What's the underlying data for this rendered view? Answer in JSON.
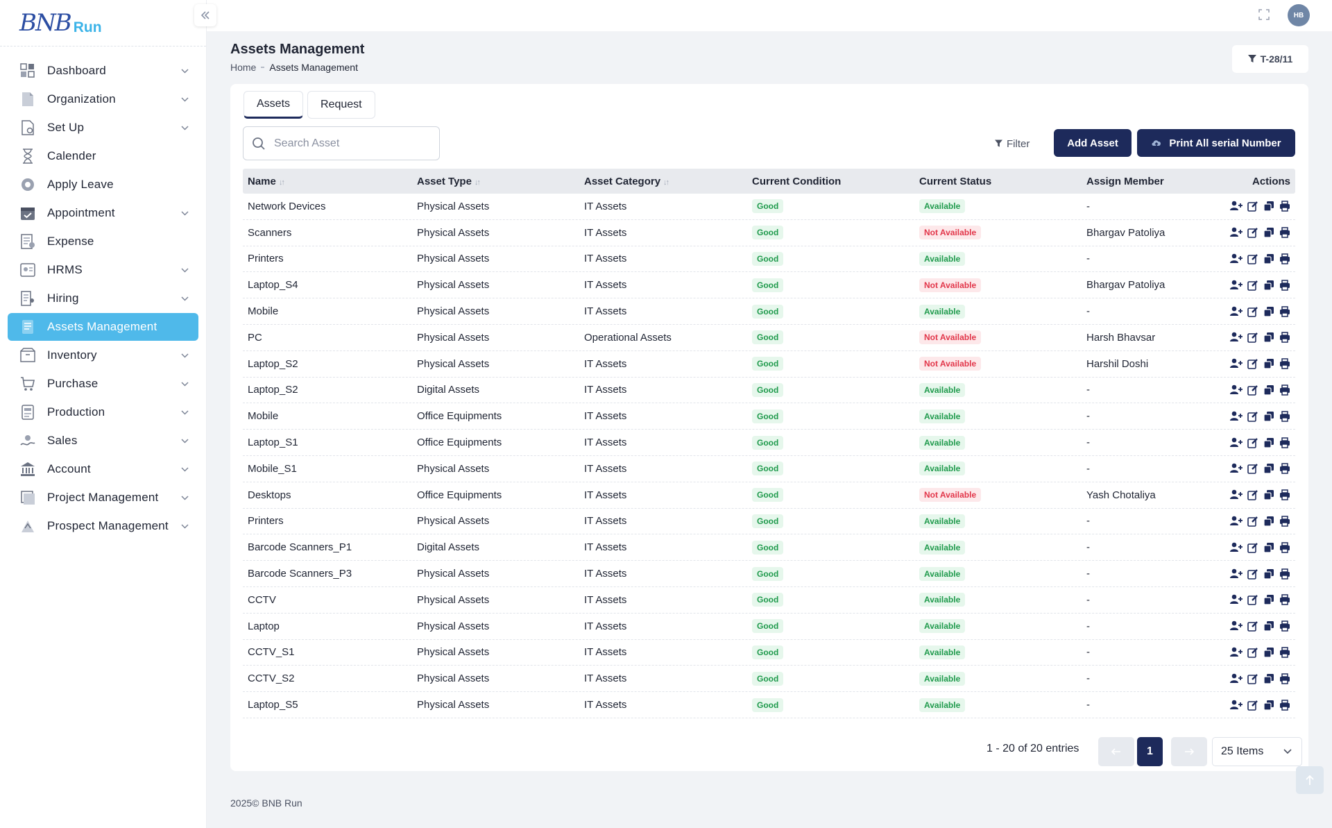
{
  "brand": {
    "logo_bn": "BNB",
    "logo_run": "Run"
  },
  "sidebar": {
    "items": [
      {
        "label": "Dashboard",
        "icon": "dashboard-icon",
        "has_children": true
      },
      {
        "label": "Organization",
        "icon": "document-icon",
        "has_children": true
      },
      {
        "label": "Set Up",
        "icon": "setup-icon",
        "has_children": true
      },
      {
        "label": "Calender",
        "icon": "hourglass-icon",
        "has_children": false
      },
      {
        "label": "Apply Leave",
        "icon": "leave-icon",
        "has_children": false
      },
      {
        "label": "Appointment",
        "icon": "calendar-check-icon",
        "has_children": true
      },
      {
        "label": "Expense",
        "icon": "receipt-icon",
        "has_children": false
      },
      {
        "label": "HRMS",
        "icon": "hrms-icon",
        "has_children": true
      },
      {
        "label": "Hiring",
        "icon": "hiring-icon",
        "has_children": true
      },
      {
        "label": "Assets Management",
        "icon": "assets-icon",
        "has_children": false,
        "active": true
      },
      {
        "label": "Inventory",
        "icon": "inventory-icon",
        "has_children": true
      },
      {
        "label": "Purchase",
        "icon": "cart-icon",
        "has_children": true
      },
      {
        "label": "Production",
        "icon": "production-icon",
        "has_children": true
      },
      {
        "label": "Sales",
        "icon": "sales-icon",
        "has_children": true
      },
      {
        "label": "Account",
        "icon": "bank-icon",
        "has_children": true
      },
      {
        "label": "Project Management",
        "icon": "project-icon",
        "has_children": true
      },
      {
        "label": "Prospect Management",
        "icon": "prospect-icon",
        "has_children": true
      }
    ]
  },
  "topbar": {
    "avatar_initials": "HB"
  },
  "header": {
    "title": "Assets Management",
    "breadcrumb_home": "Home",
    "breadcrumb_current": "Assets Management",
    "tag_label": "T-28/11"
  },
  "tabs": [
    {
      "label": "Assets",
      "active": true
    },
    {
      "label": "Request",
      "active": false
    }
  ],
  "search": {
    "placeholder": "Search Asset"
  },
  "toolbar": {
    "filter_label": "Filter",
    "add_label": "Add Asset",
    "print_label": "Print All serial Number"
  },
  "table": {
    "columns": [
      "Name",
      "Asset Type",
      "Asset Category",
      "Current Condition",
      "Current Status",
      "Assign Member",
      "Actions"
    ],
    "rows": [
      [
        "Network Devices",
        "Physical Assets",
        "IT Assets",
        "Good",
        "Available",
        "-"
      ],
      [
        "Scanners",
        "Physical Assets",
        "IT Assets",
        "Good",
        "Not Available",
        "Bhargav Patoliya"
      ],
      [
        "Printers",
        "Physical Assets",
        "IT Assets",
        "Good",
        "Available",
        "-"
      ],
      [
        "Laptop_S4",
        "Physical Assets",
        "IT Assets",
        "Good",
        "Not Available",
        "Bhargav Patoliya"
      ],
      [
        "Mobile",
        "Physical Assets",
        "IT Assets",
        "Good",
        "Available",
        "-"
      ],
      [
        "PC",
        "Physical Assets",
        "Operational Assets",
        "Good",
        "Not Available",
        "Harsh Bhavsar"
      ],
      [
        "Laptop_S2",
        "Physical Assets",
        "IT Assets",
        "Good",
        "Not Available",
        "Harshil Doshi"
      ],
      [
        "Laptop_S2",
        "Digital Assets",
        "IT Assets",
        "Good",
        "Available",
        "-"
      ],
      [
        "Mobile",
        "Office Equipments",
        "IT Assets",
        "Good",
        "Available",
        "-"
      ],
      [
        "Laptop_S1",
        "Office Equipments",
        "IT Assets",
        "Good",
        "Available",
        "-"
      ],
      [
        "Mobile_S1",
        "Physical Assets",
        "IT Assets",
        "Good",
        "Available",
        "-"
      ],
      [
        "Desktops",
        "Office Equipments",
        "IT Assets",
        "Good",
        "Not Available",
        "Yash Chotaliya"
      ],
      [
        "Printers",
        "Physical Assets",
        "IT Assets",
        "Good",
        "Available",
        "-"
      ],
      [
        "Barcode Scanners_P1",
        "Digital Assets",
        "IT Assets",
        "Good",
        "Available",
        "-"
      ],
      [
        "Barcode Scanners_P3",
        "Physical Assets",
        "IT Assets",
        "Good",
        "Available",
        "-"
      ],
      [
        "CCTV",
        "Physical Assets",
        "IT Assets",
        "Good",
        "Available",
        "-"
      ],
      [
        "Laptop",
        "Physical Assets",
        "IT Assets",
        "Good",
        "Available",
        "-"
      ],
      [
        "CCTV_S1",
        "Physical Assets",
        "IT Assets",
        "Good",
        "Available",
        "-"
      ],
      [
        "CCTV_S2",
        "Physical Assets",
        "IT Assets",
        "Good",
        "Available",
        "-"
      ],
      [
        "Laptop_S5",
        "Physical Assets",
        "IT Assets",
        "Good",
        "Available",
        "-"
      ]
    ]
  },
  "pagination": {
    "summary": "1 - 20 of 20 entries",
    "current_page": "1",
    "per_page": "25 Items"
  },
  "footer": {
    "text": "2025© BNB Run"
  },
  "colors": {
    "primary": "#1d2a5b",
    "active_nav": "#4fb9ea",
    "good": "#1f9a4c",
    "not_available": "#e2364a"
  }
}
